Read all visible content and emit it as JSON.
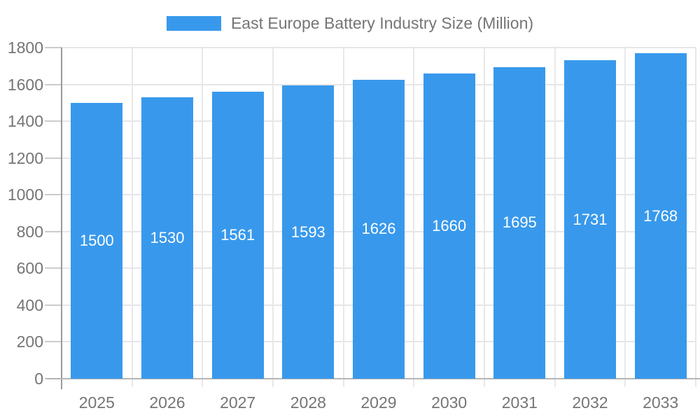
{
  "legend": {
    "label": "East Europe Battery Industry Size (Million)",
    "swatch_color": "#3899ec"
  },
  "chart_data": {
    "type": "bar",
    "title": "East Europe Battery Industry Size (Million)",
    "categories": [
      "2025",
      "2026",
      "2027",
      "2028",
      "2029",
      "2030",
      "2031",
      "2032",
      "2033"
    ],
    "values": [
      1500,
      1530,
      1561,
      1593,
      1626,
      1660,
      1695,
      1731,
      1768
    ],
    "value_labels": [
      "1500",
      "1530",
      "1561",
      "1593",
      "1626",
      "1660",
      "1695",
      "1731",
      "1768"
    ],
    "xlabel": "",
    "ylabel": "",
    "ylim": [
      0,
      1800
    ],
    "ytick_step": 200,
    "yticks": [
      "0",
      "200",
      "400",
      "600",
      "800",
      "1000",
      "1200",
      "1400",
      "1600",
      "1800"
    ],
    "grid": true,
    "legend_position": "top",
    "colors": {
      "bar": "#3899ec",
      "value_label": "#ffffff",
      "axis_label": "#757575",
      "legend_text": "#757575",
      "gridline": "#e6e6e6",
      "category_line": "#e8e8e8",
      "axis_line": "#999999",
      "baseline": "#b5b5b5",
      "tick": "#cccccc",
      "background": "#ffffff"
    }
  }
}
